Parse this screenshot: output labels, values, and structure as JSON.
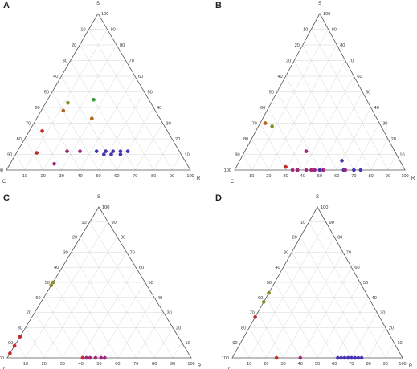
{
  "colors": {
    "orange": "#b5651d",
    "olive": "#8a8a28",
    "red": "#c42b2b",
    "green": "#3a9a3a",
    "magenta": "#a0287a",
    "blue": "#4a35b0"
  },
  "chart_data": [
    {
      "type": "scatter",
      "subtype": "ternary",
      "title": "",
      "panel_label": "A",
      "vertex_labels": {
        "top": "S",
        "left": "C",
        "right": "R"
      },
      "ticks": [
        "10",
        "20",
        "30",
        "40",
        "50",
        "60",
        "70",
        "80",
        "90",
        "100"
      ],
      "ternary_origin_note": "",
      "points": [
        {
          "C": 50,
          "S": 38,
          "R": 12,
          "color": "orange"
        },
        {
          "C": 45,
          "S": 43,
          "R": 12,
          "color": "olive"
        },
        {
          "C": 37,
          "S": 33,
          "R": 30,
          "color": "orange"
        },
        {
          "C": 30,
          "S": 45,
          "R": 25,
          "color": "green"
        },
        {
          "C": 68,
          "S": 25,
          "R": 7,
          "color": "red"
        },
        {
          "C": 78,
          "S": 11,
          "R": 11,
          "color": "red"
        },
        {
          "C": 72,
          "S": 4,
          "R": 24,
          "color": "magenta"
        },
        {
          "C": 61,
          "S": 12,
          "R": 27,
          "color": "magenta"
        },
        {
          "C": 54,
          "S": 12,
          "R": 34,
          "color": "magenta"
        },
        {
          "C": 45,
          "S": 12,
          "R": 43,
          "color": "blue"
        },
        {
          "C": 42,
          "S": 10,
          "R": 48,
          "color": "blue"
        },
        {
          "C": 40,
          "S": 12,
          "R": 48,
          "color": "blue"
        },
        {
          "C": 38,
          "S": 10,
          "R": 52,
          "color": "blue"
        },
        {
          "C": 36,
          "S": 12,
          "R": 52,
          "color": "blue"
        },
        {
          "C": 33,
          "S": 10,
          "R": 57,
          "color": "blue"
        },
        {
          "C": 32,
          "S": 12,
          "R": 56,
          "color": "blue"
        },
        {
          "C": 28,
          "S": 12,
          "R": 60,
          "color": "blue"
        }
      ]
    },
    {
      "type": "scatter",
      "subtype": "ternary",
      "title": "",
      "panel_label": "B",
      "vertex_labels": {
        "top": "S",
        "left": "C",
        "right": "R"
      },
      "ticks": [
        "10",
        "20",
        "30",
        "40",
        "50",
        "60",
        "70",
        "80",
        "90",
        "100"
      ],
      "points": [
        {
          "C": 67,
          "S": 30,
          "R": 3,
          "color": "orange"
        },
        {
          "C": 64,
          "S": 28,
          "R": 8,
          "color": "olive"
        },
        {
          "C": 52,
          "S": 12,
          "R": 36,
          "color": "magenta"
        },
        {
          "C": 69,
          "S": 2,
          "R": 29,
          "color": "red"
        },
        {
          "C": 66,
          "S": 0,
          "R": 34,
          "color": "magenta"
        },
        {
          "C": 63,
          "S": 0,
          "R": 37,
          "color": "magenta"
        },
        {
          "C": 58,
          "S": 0,
          "R": 42,
          "color": "magenta"
        },
        {
          "C": 55,
          "S": 0,
          "R": 45,
          "color": "magenta"
        },
        {
          "C": 53,
          "S": 0,
          "R": 47,
          "color": "magenta"
        },
        {
          "C": 50,
          "S": 0,
          "R": 50,
          "color": "blue"
        },
        {
          "C": 48,
          "S": 0,
          "R": 52,
          "color": "magenta"
        },
        {
          "C": 36,
          "S": 0,
          "R": 64,
          "color": "blue"
        },
        {
          "C": 34,
          "S": 6,
          "R": 60,
          "color": "blue"
        },
        {
          "C": 35,
          "S": 0,
          "R": 65,
          "color": "magenta"
        },
        {
          "C": 30,
          "S": 0,
          "R": 70,
          "color": "blue"
        },
        {
          "C": 26,
          "S": 0,
          "R": 74,
          "color": "blue"
        }
      ]
    },
    {
      "type": "scatter",
      "subtype": "ternary",
      "title": "",
      "panel_label": "C",
      "vertex_labels": {
        "top": "S",
        "left": "C",
        "right": "R"
      },
      "ticks": [
        "10",
        "20",
        "30",
        "40",
        "50",
        "60",
        "70",
        "80",
        "90",
        "100"
      ],
      "points": [
        {
          "C": 52,
          "S": 48,
          "R": 0,
          "color": "olive"
        },
        {
          "C": 50,
          "S": 50,
          "R": 0,
          "color": "olive"
        },
        {
          "C": 86,
          "S": 14,
          "R": 0,
          "color": "red"
        },
        {
          "C": 92,
          "S": 8,
          "R": 0,
          "color": "red"
        },
        {
          "C": 97,
          "S": 3,
          "R": 0,
          "color": "red"
        },
        {
          "C": 59,
          "S": 0,
          "R": 41,
          "color": "red"
        },
        {
          "C": 57,
          "S": 0,
          "R": 43,
          "color": "magenta"
        },
        {
          "C": 55,
          "S": 0,
          "R": 45,
          "color": "magenta"
        },
        {
          "C": 52,
          "S": 0,
          "R": 48,
          "color": "magenta"
        },
        {
          "C": 49,
          "S": 0,
          "R": 51,
          "color": "magenta"
        },
        {
          "C": 47,
          "S": 0,
          "R": 53,
          "color": "magenta"
        }
      ]
    },
    {
      "type": "scatter",
      "subtype": "ternary",
      "title": "",
      "panel_label": "D",
      "vertex_labels": {
        "top": "S",
        "left": "C",
        "right": "R"
      },
      "ticks": [
        "10",
        "20",
        "30",
        "40",
        "50",
        "60",
        "70",
        "80",
        "90",
        "100"
      ],
      "points": [
        {
          "C": 57,
          "S": 43,
          "R": 0,
          "color": "olive"
        },
        {
          "C": 63,
          "S": 37,
          "R": 0,
          "color": "olive"
        },
        {
          "C": 73,
          "S": 27,
          "R": 0,
          "color": "red"
        },
        {
          "C": 74,
          "S": 0,
          "R": 26,
          "color": "red"
        },
        {
          "C": 60,
          "S": 0,
          "R": 40,
          "color": "magenta"
        },
        {
          "C": 38,
          "S": 0,
          "R": 62,
          "color": "blue"
        },
        {
          "C": 36,
          "S": 0,
          "R": 64,
          "color": "blue"
        },
        {
          "C": 34,
          "S": 0,
          "R": 66,
          "color": "blue"
        },
        {
          "C": 32,
          "S": 0,
          "R": 68,
          "color": "blue"
        },
        {
          "C": 30,
          "S": 0,
          "R": 70,
          "color": "blue"
        },
        {
          "C": 28,
          "S": 0,
          "R": 72,
          "color": "blue"
        },
        {
          "C": 26,
          "S": 0,
          "R": 74,
          "color": "blue"
        },
        {
          "C": 24,
          "S": 0,
          "R": 76,
          "color": "blue"
        }
      ]
    }
  ]
}
